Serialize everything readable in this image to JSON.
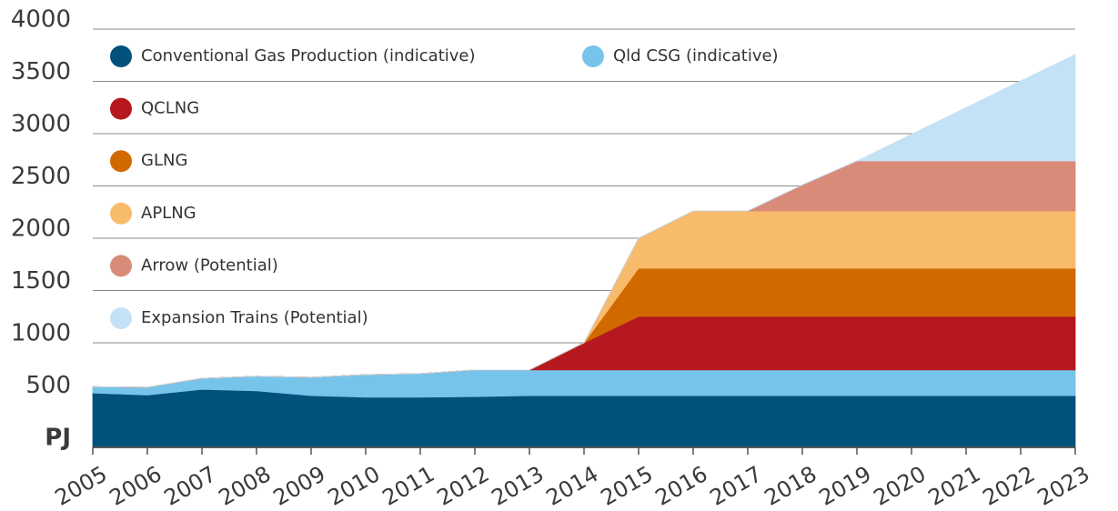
{
  "chart_data": {
    "type": "area",
    "stacked": true,
    "x": [
      2005,
      2006,
      2007,
      2008,
      2009,
      2010,
      2011,
      2012,
      2013,
      2014,
      2015,
      2016,
      2017,
      2018,
      2019,
      2020,
      2021,
      2022,
      2023
    ],
    "xlim": [
      2005,
      2023
    ],
    "xticks": [
      2005,
      2006,
      2007,
      2008,
      2009,
      2010,
      2011,
      2012,
      2013,
      2014,
      2015,
      2016,
      2017,
      2018,
      2019,
      2020,
      2021,
      2022,
      2023
    ],
    "ylim": [
      0,
      4000
    ],
    "yticks": [
      {
        "value": 0,
        "label": "PJ"
      },
      500,
      1000,
      1500,
      2000,
      2500,
      3000,
      3500,
      4000
    ],
    "grid": true,
    "series": [
      {
        "name": "Conventional Gas Production (indicative)",
        "color": "#00527a",
        "values": [
          520,
          500,
          555,
          540,
          495,
          480,
          480,
          485,
          495,
          495,
          495,
          495,
          495,
          495,
          495,
          495,
          495,
          495,
          495
        ]
      },
      {
        "name": "Qld CSG (indicative)",
        "color": "#77c4ea",
        "values": [
          60,
          75,
          105,
          140,
          175,
          215,
          225,
          255,
          245,
          245,
          245,
          245,
          245,
          245,
          245,
          245,
          245,
          245,
          245
        ]
      },
      {
        "name": "QCLNG",
        "color": "#b5191f",
        "values": [
          0,
          0,
          0,
          0,
          0,
          0,
          0,
          0,
          0,
          260,
          512,
          512,
          512,
          512,
          512,
          512,
          512,
          512,
          512
        ]
      },
      {
        "name": "GLNG",
        "color": "#d06a00",
        "values": [
          0,
          0,
          0,
          0,
          0,
          0,
          0,
          0,
          0,
          0,
          461,
          461,
          461,
          461,
          461,
          461,
          461,
          461,
          461
        ]
      },
      {
        "name": "APLNG",
        "color": "#f8bb6c",
        "values": [
          0,
          0,
          0,
          0,
          0,
          0,
          0,
          0,
          0,
          0,
          287,
          548,
          548,
          548,
          548,
          548,
          548,
          548,
          548
        ]
      },
      {
        "name": "Arrow (Potential)",
        "color": "#d98b7a",
        "values": [
          0,
          0,
          0,
          0,
          0,
          0,
          0,
          0,
          0,
          0,
          0,
          0,
          0,
          249,
          478,
          478,
          478,
          478,
          478
        ]
      },
      {
        "name": "Expansion Trains (Potential)",
        "color": "#c4e2f6",
        "values": [
          0,
          0,
          0,
          0,
          0,
          0,
          0,
          0,
          0,
          0,
          0,
          0,
          0,
          0,
          0,
          255,
          510,
          765,
          1018
        ]
      }
    ]
  }
}
